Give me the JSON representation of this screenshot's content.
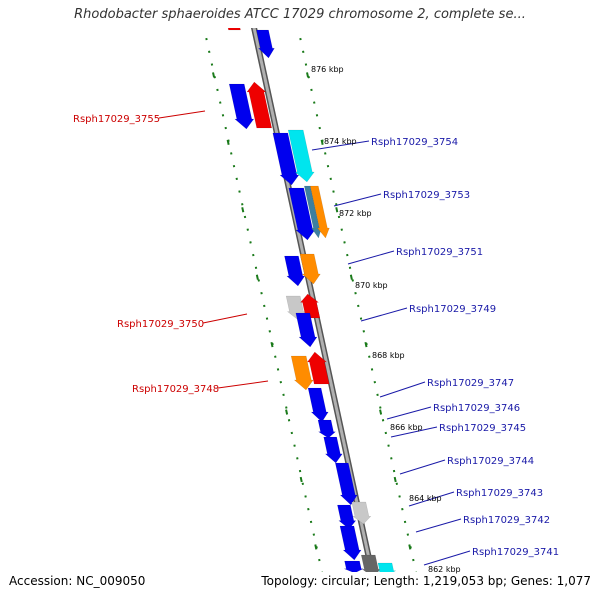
{
  "title": "Rhodobacter sphaeroides ATCC 17029 chromosome 2, complete se...",
  "footer": {
    "accession": "Accession: NC_009050",
    "info": "Topology: circular; Length: 1,219,053 bp; Genes: 1,077"
  },
  "colors": {
    "forward": "#0000ee",
    "reverse": "#ee0000",
    "label_forward": "#1a1aa8",
    "label_reverse": "#cc0000",
    "backbone": "#888888",
    "ruler": "#1a7a1a",
    "cyan": "#00e5ee",
    "orange": "#ff8c00",
    "gray": "#c8c8c8",
    "teal": "#3d7fa0",
    "dark_gray": "#666666"
  },
  "scale_labels": [
    "876 kbp",
    "874 kbp",
    "872 kbp",
    "870 kbp",
    "868 kbp",
    "866 kbp",
    "864 kbp",
    "862 kbp"
  ],
  "gene_labels": [
    "Rsph17029_3755",
    "Rsph17029_3754",
    "Rsph17029_3753",
    "Rsph17029_3751",
    "Rsph17029_3750",
    "Rsph17029_3749",
    "Rsph17029_3748",
    "Rsph17029_3747",
    "Rsph17029_3746",
    "Rsph17029_3745",
    "Rsph17029_3744",
    "Rsph17029_3743",
    "Rsph17029_3742",
    "Rsph17029_3741"
  ],
  "genes": [
    {
      "strand": "forward",
      "color": "blue"
    },
    {
      "strand": "reverse",
      "color": "red"
    },
    {
      "strand": "forward",
      "color": "cyan"
    },
    {
      "strand": "forward",
      "color": "orange"
    },
    {
      "strand": "forward",
      "color": "gray"
    },
    {
      "strand": "reverse",
      "color": "gray"
    },
    {
      "strand": "forward",
      "color": "dark_gray"
    }
  ]
}
